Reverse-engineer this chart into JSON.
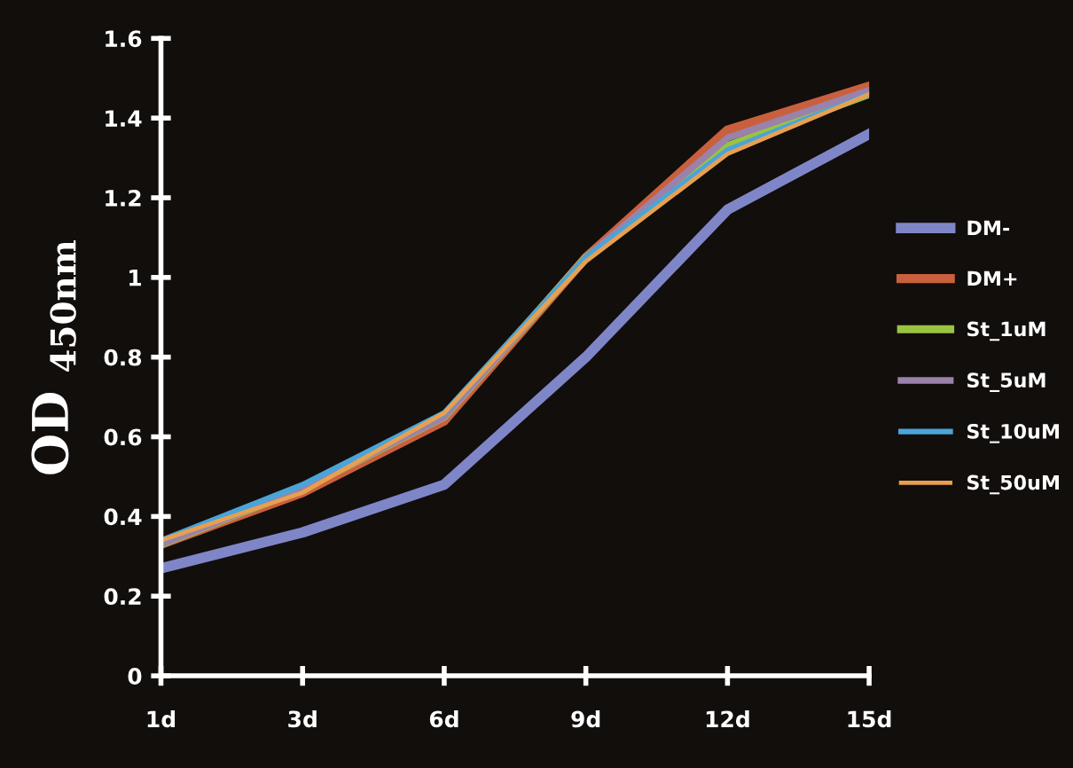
{
  "chart_data": {
    "type": "line",
    "ylabel": "OD $_{450nm}$",
    "categories": [
      "1d",
      "3d",
      "6d",
      "9d",
      "12d",
      "15d"
    ],
    "series": [
      {
        "name": "DM-",
        "color": "#7f86c8",
        "values": [
          0.27,
          0.36,
          0.48,
          0.8,
          1.17,
          1.36
        ]
      },
      {
        "name": "DM+",
        "color": "#c8603e",
        "values": [
          0.33,
          0.46,
          0.64,
          1.05,
          1.37,
          1.48
        ]
      },
      {
        "name": "St_1uM",
        "color": "#9ac440",
        "values": [
          0.33,
          0.47,
          0.65,
          1.05,
          1.33,
          1.46
        ]
      },
      {
        "name": "St_5uM",
        "color": "#9a82aa",
        "values": [
          0.33,
          0.47,
          0.65,
          1.05,
          1.35,
          1.47
        ]
      },
      {
        "name": "St_10uM",
        "color": "#4aa4d8",
        "values": [
          0.34,
          0.48,
          0.66,
          1.05,
          1.32,
          1.46
        ]
      },
      {
        "name": "St_50uM",
        "color": "#e8a050",
        "values": [
          0.34,
          0.46,
          0.66,
          1.04,
          1.31,
          1.46
        ]
      }
    ],
    "ylim": [
      0,
      1.6
    ],
    "yticks": [
      0,
      0.2,
      0.4,
      0.6,
      0.8,
      1,
      1.2,
      1.4,
      1.6
    ],
    "grid": false,
    "legend": "right",
    "marker": "none",
    "line_style": "solid"
  }
}
